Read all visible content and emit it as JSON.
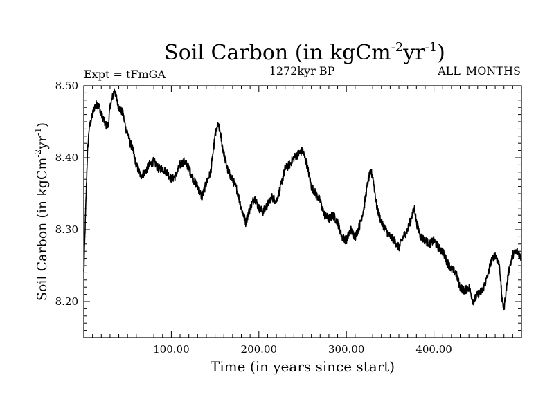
{
  "chart_data": {
    "type": "line",
    "title": {
      "main": "Soil Carbon (in kgCm",
      "sup1": "-2",
      "mid": "yr",
      "sup2": "-1",
      "close": ")"
    },
    "subtitle_left": "Expt = tFmGA",
    "subtitle_center": "1272kyr BP",
    "subtitle_right": "ALL_MONTHS",
    "xlabel": "Time (in years since start)",
    "ylabel": {
      "main": "Soil Carbon (in kgCm",
      "sup1": "-2",
      "mid": "yr",
      "sup2": "-1",
      "close": ")"
    },
    "xlim": [
      0,
      500
    ],
    "ylim": [
      8.15,
      8.5
    ],
    "x_ticks": [
      100,
      200,
      300,
      400
    ],
    "x_tick_labels": [
      "100.00",
      "200.00",
      "300.00",
      "400.00"
    ],
    "y_ticks": [
      8.2,
      8.3,
      8.4,
      8.5
    ],
    "y_tick_labels": [
      "8.20",
      "8.30",
      "8.40",
      "8.50"
    ],
    "grid": false,
    "series": [
      {
        "name": "Soil Carbon",
        "color": "#000000",
        "x": [
          0,
          2,
          4,
          6,
          8,
          10,
          12,
          15,
          18,
          20,
          22,
          25,
          28,
          30,
          32,
          35,
          37,
          40,
          43,
          45,
          48,
          50,
          53,
          55,
          58,
          60,
          65,
          70,
          75,
          80,
          85,
          90,
          95,
          100,
          105,
          110,
          115,
          120,
          125,
          130,
          135,
          140,
          145,
          150,
          153,
          155,
          160,
          165,
          170,
          175,
          180,
          185,
          190,
          195,
          200,
          205,
          210,
          215,
          220,
          225,
          230,
          235,
          240,
          245,
          250,
          255,
          260,
          265,
          270,
          275,
          280,
          285,
          290,
          295,
          300,
          305,
          310,
          315,
          320,
          325,
          328,
          330,
          335,
          340,
          345,
          350,
          355,
          360,
          365,
          370,
          375,
          378,
          380,
          385,
          390,
          395,
          400,
          405,
          410,
          415,
          420,
          425,
          430,
          435,
          440,
          445,
          450,
          455,
          460,
          465,
          470,
          475,
          478,
          480,
          485,
          490,
          495,
          500
        ],
        "values": [
          8.24,
          8.32,
          8.4,
          8.44,
          8.45,
          8.46,
          8.47,
          8.475,
          8.47,
          8.46,
          8.455,
          8.445,
          8.445,
          8.47,
          8.48,
          8.495,
          8.485,
          8.47,
          8.465,
          8.46,
          8.44,
          8.435,
          8.42,
          8.415,
          8.4,
          8.39,
          8.375,
          8.38,
          8.39,
          8.395,
          8.385,
          8.385,
          8.38,
          8.37,
          8.375,
          8.39,
          8.395,
          8.385,
          8.37,
          8.36,
          8.345,
          8.365,
          8.38,
          8.43,
          8.445,
          8.44,
          8.405,
          8.38,
          8.37,
          8.355,
          8.33,
          8.31,
          8.33,
          8.345,
          8.33,
          8.325,
          8.335,
          8.345,
          8.34,
          8.36,
          8.385,
          8.39,
          8.4,
          8.405,
          8.41,
          8.39,
          8.36,
          8.35,
          8.34,
          8.32,
          8.315,
          8.32,
          8.31,
          8.29,
          8.285,
          8.3,
          8.29,
          8.305,
          8.33,
          8.37,
          8.38,
          8.375,
          8.33,
          8.31,
          8.3,
          8.29,
          8.285,
          8.275,
          8.29,
          8.3,
          8.32,
          8.33,
          8.31,
          8.29,
          8.285,
          8.28,
          8.285,
          8.275,
          8.27,
          8.255,
          8.245,
          8.24,
          8.22,
          8.215,
          8.22,
          8.2,
          8.21,
          8.215,
          8.23,
          8.255,
          8.265,
          8.25,
          8.2,
          8.19,
          8.24,
          8.265,
          8.27,
          8.26
        ]
      }
    ]
  }
}
